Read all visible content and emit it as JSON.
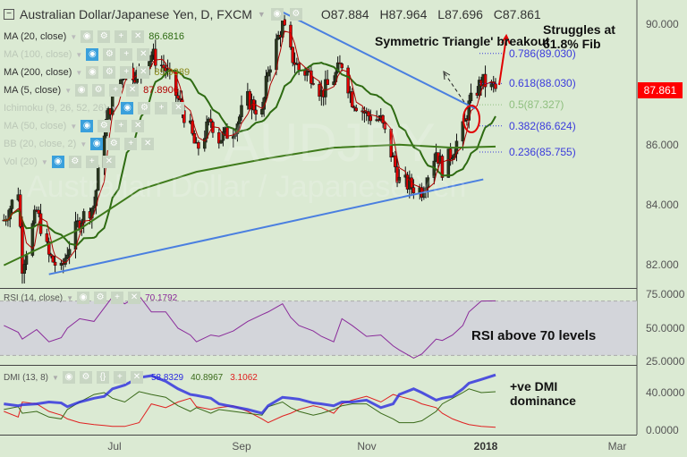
{
  "header": {
    "symbol_title": "Australian Dollar/Japanese Yen, D, FXCM",
    "open": "O87.884",
    "high": "H87.964",
    "low": "L87.696",
    "close": "C87.861"
  },
  "watermark": {
    "ticker": "AUDJPY",
    "name": "Australian Dollar / Japanese Yen"
  },
  "indicators": [
    {
      "label": "MA (20, close)",
      "value": "86.6816",
      "color": "#2e6b12",
      "hidden": false
    },
    {
      "label": "MA (100, close)",
      "value": "",
      "hidden": true
    },
    {
      "label": "MA (200, close)",
      "value": "85.9389",
      "color": "#8a8a1a",
      "hidden": false
    },
    {
      "label": "MA (5, close)",
      "value": "87.8906",
      "color": "#b00000",
      "hidden": false
    },
    {
      "label": "Ichimoku (9, 26, 52, 26)",
      "value": "",
      "hidden": true
    },
    {
      "label": "MA (50, close)",
      "value": "",
      "hidden": true
    },
    {
      "label": "BB (20, close, 2)",
      "value": "",
      "hidden": true
    },
    {
      "label": "Vol (20)",
      "value": "",
      "hidden": true
    }
  ],
  "annotations": {
    "triangle": "Symmetric Triangle' breakout",
    "fib_struggle": "Struggles at 61.8% Fib",
    "rsi_note": "RSI above 70 levels",
    "dmi_note": "+ve DMI dominance"
  },
  "fib_levels": [
    {
      "label": "0.786(89.030)",
      "price": 89.03,
      "color": "#3b3bdc"
    },
    {
      "label": "0.618(88.030)",
      "price": 88.03,
      "color": "#3b3bdc"
    },
    {
      "label": "0.5(87.327)",
      "price": 87.327,
      "color": "#8fbf7f"
    },
    {
      "label": "0.382(86.624)",
      "price": 86.624,
      "color": "#3b3bdc"
    },
    {
      "label": "0.236(85.755)",
      "price": 85.755,
      "color": "#3b3bdc"
    }
  ],
  "price_axis": {
    "ticks": [
      "90.000",
      "86.000",
      "84.000",
      "82.000"
    ],
    "last_price": "87.861",
    "last_price_color": "#ff0000"
  },
  "rsi": {
    "label": "RSI (14, close)",
    "value": "70.1792",
    "color": "#8a2a9a",
    "ticks": [
      "75.0000",
      "50.0000",
      "25.0000"
    ],
    "band": [
      30,
      70
    ]
  },
  "dmi": {
    "label": "DMI (13, 8)",
    "values": [
      "58.8329",
      "40.8967",
      "3.1062"
    ],
    "colors": [
      "#2a2ae0",
      "#3a6a1a",
      "#e02020"
    ],
    "ticks": [
      "40.0000",
      "0.0000"
    ]
  },
  "time_axis": {
    "ticks": [
      "Jul",
      "Sep",
      "Nov",
      "2018",
      "Mar"
    ]
  },
  "chart_data": [
    {
      "type": "candlestick",
      "title": "Australian Dollar/Japanese Yen, D, FXCM",
      "ylim": [
        81,
        90.8
      ],
      "grid": false,
      "x": [
        "2017-05-08",
        "2017-05-15",
        "2017-05-17",
        "2017-05-24",
        "2017-05-30",
        "2017-06-05",
        "2017-06-08",
        "2017-06-14",
        "2017-06-21",
        "2017-06-26",
        "2017-06-30",
        "2017-07-06",
        "2017-07-13",
        "2017-07-19",
        "2017-07-26",
        "2017-08-01",
        "2017-08-07",
        "2017-08-10",
        "2017-08-17",
        "2017-08-21",
        "2017-08-28",
        "2017-09-04",
        "2017-09-11",
        "2017-09-14",
        "2017-09-21",
        "2017-09-25",
        "2017-09-29",
        "2017-10-06",
        "2017-10-10",
        "2017-10-16",
        "2017-10-20",
        "2017-10-25",
        "2017-11-01",
        "2017-11-08",
        "2017-11-14",
        "2017-11-17",
        "2017-11-24",
        "2017-11-28",
        "2017-12-05",
        "2017-12-08",
        "2017-12-13",
        "2017-12-18",
        "2017-12-21",
        "2017-12-27",
        "2018-01-03"
      ],
      "close": [
        83.5,
        84.5,
        82.0,
        83.8,
        82.3,
        81.8,
        82.5,
        83.5,
        84.0,
        86.5,
        87.5,
        88.5,
        88.3,
        89.0,
        88.5,
        87.5,
        86.5,
        85.8,
        86.8,
        86.2,
        86.5,
        87.5,
        87.0,
        88.5,
        90.0,
        89.0,
        88.5,
        88.3,
        87.7,
        88.2,
        88.7,
        87.5,
        87.0,
        86.8,
        85.5,
        84.8,
        84.6,
        84.5,
        85.8,
        85.2,
        85.8,
        86.5,
        87.3,
        88.1,
        87.861
      ],
      "ma200": {
        "x": [
          "2017-05-08",
          "2017-06-14",
          "2017-07-13",
          "2017-08-10",
          "2017-09-14",
          "2017-10-16",
          "2017-11-17",
          "2017-12-13",
          "2018-01-03"
        ],
        "values": [
          82.0,
          83.2,
          84.5,
          85.1,
          85.55,
          85.9,
          86.0,
          85.9,
          85.94
        ]
      },
      "trendlines": [
        {
          "name": "support",
          "points": [
            [
              "2017-05-30",
              81.7
            ],
            [
              "2017-12-28",
              84.85
            ]
          ]
        },
        {
          "name": "resistance",
          "points": [
            [
              "2017-09-21",
              90.4
            ],
            [
              "2017-12-24",
              87.2
            ]
          ]
        }
      ]
    },
    {
      "type": "line",
      "title": "RSI (14, close)",
      "ylim": [
        22,
        78
      ],
      "series": [
        {
          "name": "RSI (14, close)",
          "values": [
            52,
            47,
            42,
            49,
            40,
            43,
            50,
            57,
            55,
            65,
            73,
            68,
            74,
            62,
            62,
            50,
            45,
            40,
            45,
            44,
            48,
            55,
            60,
            62,
            68,
            58,
            52,
            48,
            44,
            40,
            57,
            52,
            44,
            45,
            37,
            34,
            28,
            31,
            42,
            41,
            45,
            52,
            62,
            70,
            70.18
          ]
        }
      ]
    },
    {
      "type": "line",
      "title": "DMI (13, 8)",
      "ylim": [
        -2,
        70
      ],
      "series": [
        {
          "values": [
            28,
            26,
            27,
            28,
            30,
            29,
            25,
            30,
            34,
            36,
            44,
            48,
            56,
            58,
            52,
            44,
            38,
            37,
            34,
            28,
            25,
            22,
            18,
            26,
            35,
            34,
            33,
            29,
            28,
            26,
            30,
            30,
            32,
            24,
            28,
            38,
            44,
            40,
            32,
            34,
            36,
            44,
            50,
            54,
            58.83
          ]
        },
        {
          "values": [
            22,
            25,
            18,
            20,
            14,
            12,
            22,
            30,
            38,
            40,
            34,
            30,
            41,
            38,
            35,
            26,
            20,
            24,
            18,
            22,
            20,
            18,
            16,
            25,
            30,
            24,
            20,
            16,
            18,
            22,
            26,
            28,
            28,
            18,
            12,
            8,
            8,
            10,
            20,
            28,
            34,
            40,
            44,
            40,
            40.9
          ]
        },
        {
          "values": [
            20,
            14,
            30,
            28,
            20,
            16,
            12,
            8,
            6,
            5,
            4,
            4,
            8,
            28,
            24,
            30,
            34,
            25,
            22,
            24,
            26,
            20,
            12,
            8,
            15,
            18,
            22,
            26,
            24,
            18,
            28,
            32,
            36,
            30,
            38,
            36,
            32,
            28,
            24,
            18,
            12,
            8,
            6,
            4,
            3.11
          ]
        }
      ]
    }
  ]
}
